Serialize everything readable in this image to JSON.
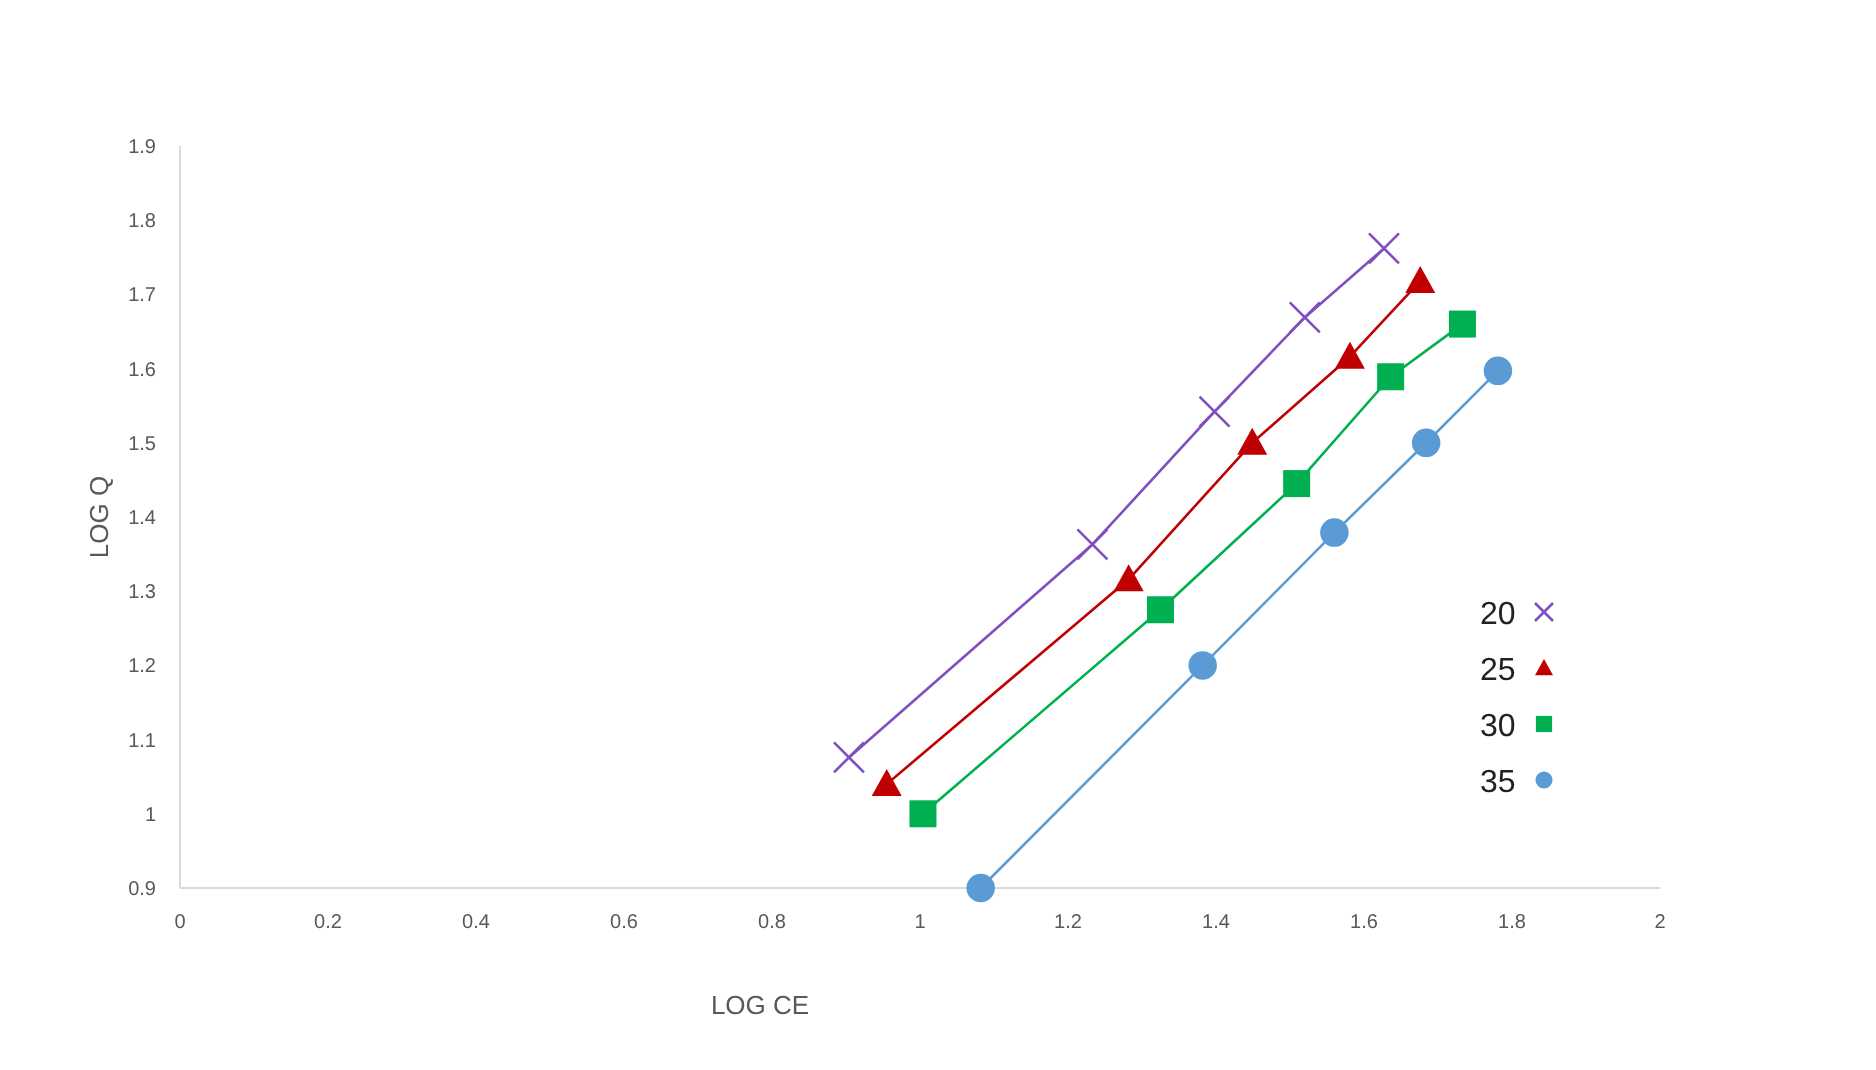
{
  "chart_data": {
    "type": "line",
    "xlabel": "LOG CE",
    "ylabel": "LOG Q",
    "xlim": [
      0,
      2
    ],
    "xticks": [
      0,
      0.2,
      0.4,
      0.6,
      0.8,
      1,
      1.2,
      1.4,
      1.6,
      1.8,
      2
    ],
    "ylim": [
      0.9,
      1.9
    ],
    "yticks": [
      0.9,
      1,
      1.1,
      1.2,
      1.3,
      1.4,
      1.5,
      1.6,
      1.7,
      1.8,
      1.9
    ],
    "grid": false,
    "legend": "right",
    "line_style": "solid",
    "series": [
      {
        "name": "20",
        "color": "#7f4fbf",
        "marker": "cross",
        "x": [
          0.904,
          1.233,
          1.398,
          1.52,
          1.627
        ],
        "values": [
          1.076,
          1.363,
          1.542,
          1.669,
          1.762
        ]
      },
      {
        "name": "25",
        "color": "#c00000",
        "marker": "triangle",
        "x": [
          0.955,
          1.282,
          1.449,
          1.581,
          1.676
        ],
        "values": [
          1.04,
          1.316,
          1.5,
          1.616,
          1.718
        ]
      },
      {
        "name": "30",
        "color": "#00b050",
        "marker": "square",
        "x": [
          1.004,
          1.325,
          1.509,
          1.636,
          1.733
        ],
        "values": [
          1.0,
          1.275,
          1.445,
          1.589,
          1.66
        ]
      },
      {
        "name": "35",
        "color": "#5b9bd5",
        "marker": "circle",
        "x": [
          1.082,
          1.382,
          1.56,
          1.684,
          1.781
        ],
        "values": [
          0.9,
          1.2,
          1.379,
          1.5,
          1.597
        ]
      }
    ]
  }
}
